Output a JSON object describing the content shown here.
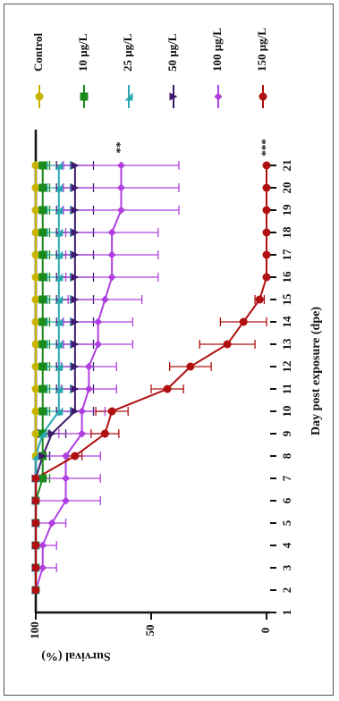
{
  "chart_data": {
    "type": "line",
    "xlabel": "Day post exposure (dpe)",
    "ylabel": "Survival (%)",
    "xlim": [
      1,
      21
    ],
    "ylim": [
      0,
      100
    ],
    "x_ticks": [
      "1",
      "2",
      "3",
      "4",
      "5",
      "6",
      "7",
      "8",
      "9",
      "10",
      "11",
      "12",
      "13",
      "14",
      "15",
      "16",
      "17",
      "18",
      "19",
      "20",
      "21"
    ],
    "y_ticks": [
      "0",
      "50",
      "100"
    ],
    "legend_position": "right (rotated)",
    "x": [
      2,
      3,
      4,
      5,
      6,
      7,
      8,
      9,
      10,
      11,
      12,
      13,
      14,
      15,
      16,
      17,
      18,
      19,
      20,
      21
    ],
    "series": [
      {
        "name": "Control",
        "color": "#c8b400",
        "marker": "circle",
        "values": [
          100,
          100,
          100,
          100,
          100,
          100,
          100,
          100,
          100,
          100,
          100,
          100,
          100,
          100,
          100,
          100,
          100,
          100,
          100,
          100
        ],
        "errors": [
          0,
          0,
          0,
          0,
          0,
          0,
          0,
          0,
          0,
          0,
          0,
          0,
          0,
          0,
          0,
          0,
          0,
          0,
          0,
          0
        ]
      },
      {
        "name": "10 μg/L",
        "color": "#1a8a1a",
        "marker": "square",
        "values": [
          100,
          100,
          100,
          100,
          100,
          97,
          97,
          97,
          97,
          97,
          97,
          97,
          97,
          97,
          97,
          97,
          97,
          97,
          97,
          97
        ],
        "errors": [
          0,
          0,
          0,
          0,
          0,
          3,
          3,
          3,
          3,
          3,
          3,
          3,
          3,
          3,
          3,
          3,
          3,
          3,
          3,
          3
        ]
      },
      {
        "name": "25 μg/L",
        "color": "#2aa8b0",
        "marker": "triangle-up",
        "values": [
          100,
          100,
          100,
          100,
          100,
          100,
          100,
          97,
          90,
          90,
          90,
          90,
          90,
          90,
          90,
          90,
          90,
          90,
          90,
          90
        ],
        "errors": [
          0,
          0,
          0,
          0,
          0,
          0,
          0,
          3,
          5,
          5,
          5,
          5,
          5,
          5,
          5,
          5,
          5,
          5,
          5,
          5
        ]
      },
      {
        "name": "50 μg/L",
        "color": "#3d1a6e",
        "marker": "triangle-right",
        "values": [
          100,
          100,
          100,
          100,
          100,
          100,
          97,
          93,
          83,
          83,
          83,
          83,
          83,
          83,
          83,
          83,
          83,
          83,
          83,
          83
        ],
        "errors": [
          0,
          0,
          0,
          0,
          0,
          0,
          3,
          6,
          8,
          8,
          8,
          8,
          8,
          8,
          8,
          8,
          8,
          8,
          8,
          8
        ]
      },
      {
        "name": "100 μg/L",
        "color": "#b040e0",
        "marker": "diamond",
        "values": [
          100,
          97,
          97,
          93,
          87,
          87,
          87,
          80,
          80,
          77,
          77,
          73,
          73,
          70,
          67,
          67,
          67,
          63,
          63,
          63
        ],
        "errors": [
          0,
          6,
          6,
          6,
          15,
          15,
          15,
          10,
          10,
          12,
          12,
          15,
          15,
          16,
          20,
          20,
          20,
          25,
          25,
          25
        ],
        "annotation": "**"
      },
      {
        "name": "150 μg/L",
        "color": "#b01010",
        "marker": "circle",
        "values": [
          100,
          100,
          100,
          100,
          100,
          100,
          83,
          70,
          67,
          43,
          33,
          17,
          10,
          3,
          0,
          0,
          0,
          0,
          0,
          0
        ],
        "errors": [
          0,
          0,
          0,
          0,
          0,
          0,
          3,
          6,
          7,
          7,
          9,
          12,
          10,
          2,
          0,
          0,
          0,
          0,
          0,
          0
        ],
        "annotation": "***"
      }
    ]
  }
}
